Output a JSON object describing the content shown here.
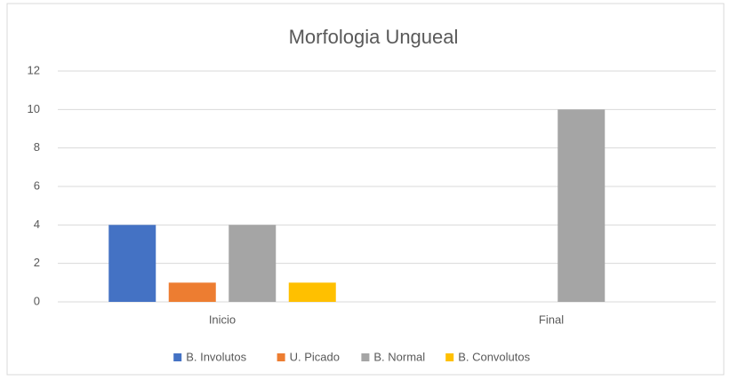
{
  "chart_data": {
    "type": "bar",
    "title": "Morfologia Ungueal",
    "categories": [
      "Inicio",
      "Final"
    ],
    "series": [
      {
        "name": "B. Involutos",
        "color": "#4472c4",
        "values": [
          4,
          0
        ]
      },
      {
        "name": "U. Picado",
        "color": "#ed7d31",
        "values": [
          1,
          0
        ]
      },
      {
        "name": "B. Normal",
        "color": "#a5a5a5",
        "values": [
          4,
          10
        ]
      },
      {
        "name": "B. Convolutos",
        "color": "#ffc000",
        "values": [
          1,
          0
        ]
      }
    ],
    "ylim": [
      0,
      12
    ],
    "yticks": [
      0,
      2,
      4,
      6,
      8,
      10,
      12
    ],
    "grid": true,
    "legend": "bottom"
  }
}
